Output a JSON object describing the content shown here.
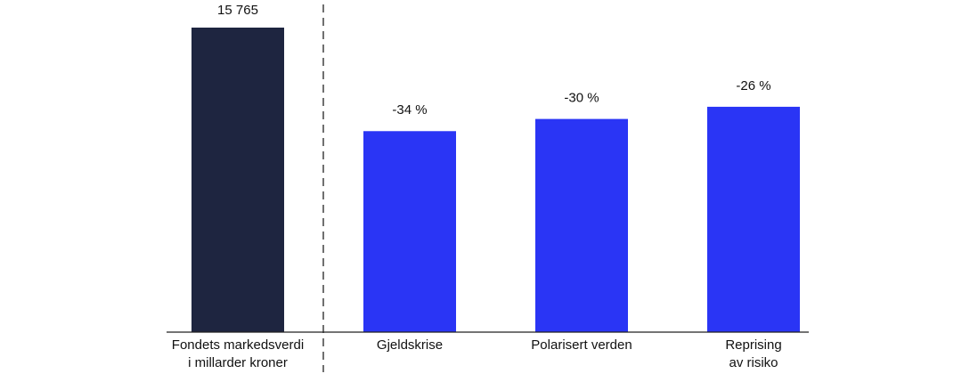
{
  "chart_data": {
    "type": "scenario-bar",
    "base": {
      "category": [
        "Fondets markedsverdi",
        "i millarder kroner"
      ],
      "value": 15765,
      "value_label": "15 765",
      "color": "#1e2540"
    },
    "scenarios": {
      "color": "#2a35f5",
      "categories": [
        [
          "Gjeldskrise"
        ],
        [
          "Polarisert verden"
        ],
        [
          "Reprising",
          "av risiko"
        ]
      ],
      "values": [
        -34,
        -30,
        -26
      ],
      "value_labels": [
        "-34 %",
        "-30 %",
        "-26 %"
      ]
    }
  }
}
